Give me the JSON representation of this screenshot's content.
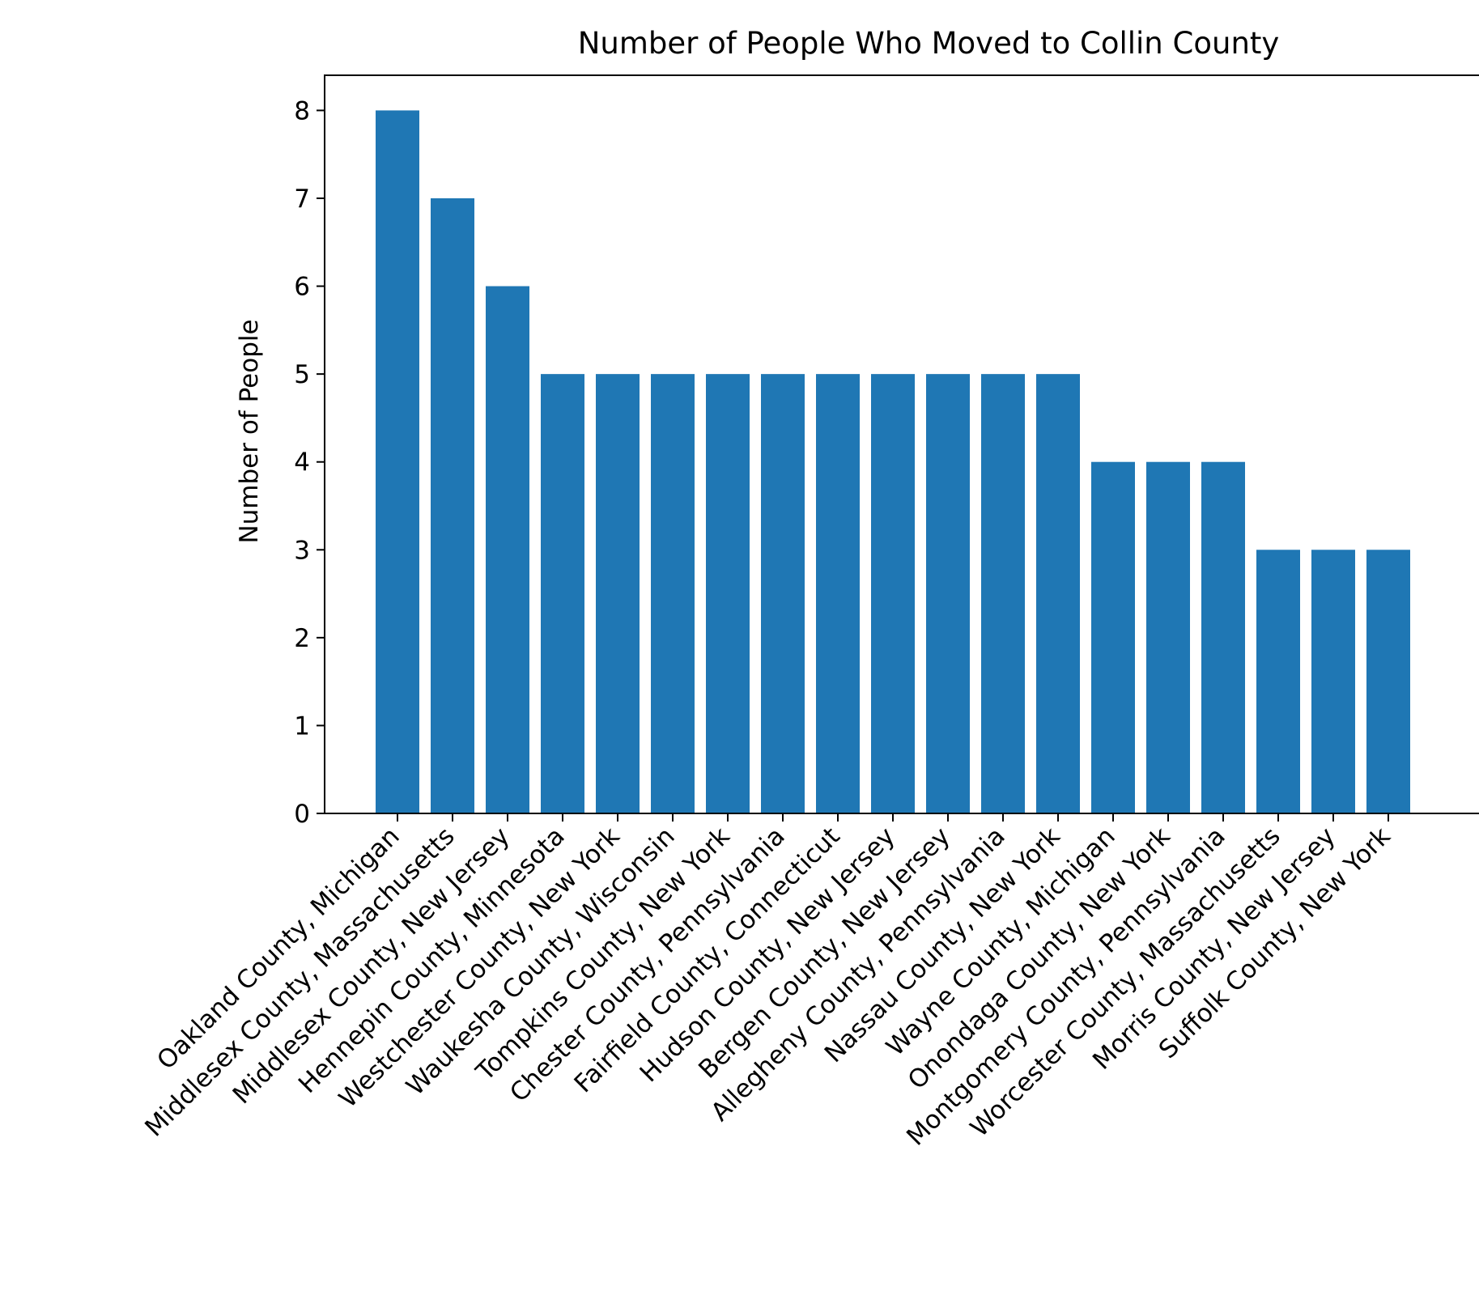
{
  "chart_data": {
    "type": "bar",
    "title": "Number of People Who Moved to Collin County",
    "xlabel": "",
    "ylabel": "Number of People",
    "ylim": [
      0,
      8.4
    ],
    "yticks": [
      0,
      1,
      2,
      3,
      4,
      5,
      6,
      7,
      8
    ],
    "grid": false,
    "legend": "none",
    "bar_color": "#1f77b4",
    "categories": [
      "Oakland County, Michigan",
      "Middlesex County, Massachusetts",
      "Middlesex County, New Jersey",
      "Hennepin County, Minnesota",
      "Westchester County, New York",
      "Waukesha County, Wisconsin",
      "Tompkins County, New York",
      "Chester County, Pennsylvania",
      "Fairfield County, Connecticut",
      "Hudson County, New Jersey",
      "Bergen County, New Jersey",
      "Allegheny County, Pennsylvania",
      "Nassau County, New York",
      "Wayne County, Michigan",
      "Onondaga County, New York",
      "Montgomery County, Pennsylvania",
      "Worcester County, Massachusetts",
      "Morris County, New Jersey",
      "Suffolk County, New York"
    ],
    "values": [
      8,
      7,
      6,
      5,
      5,
      5,
      5,
      5,
      5,
      5,
      5,
      5,
      5,
      4,
      4,
      4,
      3,
      3,
      3
    ]
  }
}
